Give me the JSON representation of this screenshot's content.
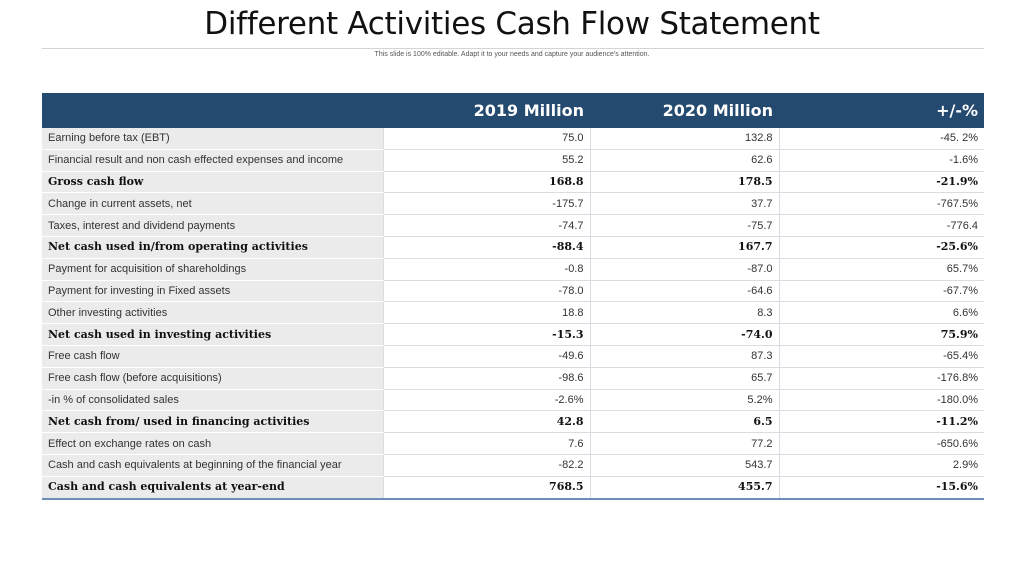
{
  "title": "Different Activities Cash Flow Statement",
  "subtitle": "This slide is 100% editable. Adapt it to your needs and capture your audience's attention.",
  "table": {
    "headers": [
      "",
      "2019 Million",
      "2020 Million",
      "+/-%"
    ],
    "rows": [
      {
        "label": "Earning before tax (EBT)",
        "v2019": "75.0",
        "v2020": "132.8",
        "change": "-45. 2%",
        "bold": false
      },
      {
        "label": "Financial result and non cash effected expenses and income",
        "v2019": "55.2",
        "v2020": "62.6",
        "change": "-1.6%",
        "bold": false
      },
      {
        "label": "Gross cash flow",
        "v2019": "168.8",
        "v2020": "178.5",
        "change": "-21.9%",
        "bold": true
      },
      {
        "label": "Change in current assets, net",
        "v2019": "-175.7",
        "v2020": "37.7",
        "change": "-767.5%",
        "bold": false
      },
      {
        "label": "Taxes, interest and dividend payments",
        "v2019": "-74.7",
        "v2020": "-75.7",
        "change": "-776.4",
        "bold": false
      },
      {
        "label": "Net cash used in/from operating activities",
        "v2019": "-88.4",
        "v2020": "167.7",
        "change": "-25.6%",
        "bold": true
      },
      {
        "label": "Payment for acquisition of shareholdings",
        "v2019": "-0.8",
        "v2020": "-87.0",
        "change": "65.7%",
        "bold": false
      },
      {
        "label": "Payment for investing in Fixed assets",
        "v2019": "-78.0",
        "v2020": "-64.6",
        "change": "-67.7%",
        "bold": false
      },
      {
        "label": "Other investing activities",
        "v2019": "18.8",
        "v2020": "8.3",
        "change": "6.6%",
        "bold": false
      },
      {
        "label": "Net cash used in investing activities",
        "v2019": "-15.3",
        "v2020": "-74.0",
        "change": "75.9%",
        "bold": true
      },
      {
        "label": "Free cash flow",
        "v2019": "-49.6",
        "v2020": "87.3",
        "change": "-65.4%",
        "bold": false
      },
      {
        "label": "Free cash flow (before acquisitions)",
        "v2019": "-98.6",
        "v2020": "65.7",
        "change": "-176.8%",
        "bold": false
      },
      {
        "label": "-in % of consolidated sales",
        "v2019": "-2.6%",
        "v2020": "5.2%",
        "change": "-180.0%",
        "bold": false
      },
      {
        "label": "Net cash from/ used in financing activities",
        "v2019": "42.8",
        "v2020": "6.5",
        "change": "-11.2%",
        "bold": true
      },
      {
        "label": "Effect on exchange rates on cash",
        "v2019": "7.6",
        "v2020": "77.2",
        "change": "-650.6%",
        "bold": false
      },
      {
        "label": "Cash and cash equivalents at beginning of the financial year",
        "v2019": "-82.2",
        "v2020": "543.7",
        "change": "2.9%",
        "bold": false
      },
      {
        "label": "Cash and cash equivalents at year-end",
        "v2019": "768.5",
        "v2020": "455.7",
        "change": "-15.6%",
        "bold": true
      }
    ]
  },
  "colors": {
    "header_bg": "#244a70",
    "label_bg": "#ebebeb",
    "bottom_rule": "#6b8fb8"
  }
}
